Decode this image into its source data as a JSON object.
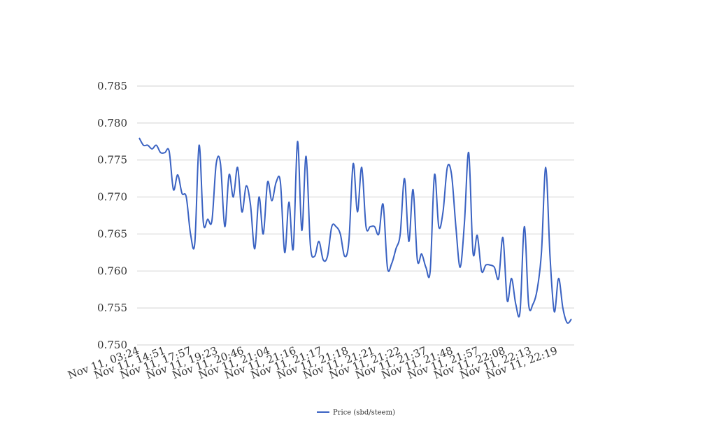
{
  "chart_data": {
    "type": "line",
    "title": "",
    "xlabel": "",
    "ylabel": "",
    "ylim": [
      0.75,
      0.785
    ],
    "y_ticks": [
      0.75,
      0.755,
      0.76,
      0.765,
      0.77,
      0.775,
      0.78,
      0.785
    ],
    "y_tick_labels": [
      "0.750",
      "0.755",
      "0.760",
      "0.765",
      "0.770",
      "0.775",
      "0.780",
      "0.785"
    ],
    "grid": true,
    "legend_position": "bottom-center",
    "x_tick_labels": [
      "Nov 11, 03:24",
      "Nov 11, 14:51",
      "Nov 11, 17:57",
      "Nov 11, 19:23",
      "Nov 11, 20:46",
      "Nov 11, 21:04",
      "Nov 11, 21:16",
      "Nov 11, 21:17",
      "Nov 11, 21:18",
      "Nov 11, 21:21",
      "Nov 11, 21:22",
      "Nov 11, 21:37",
      "Nov 11, 21:48",
      "Nov 11, 21:57",
      "Nov 11, 22:08",
      "Nov 11, 22:13",
      "Nov 11, 22:19"
    ],
    "series": [
      {
        "name": "Price (sbd/steem)",
        "color": "#3a62c2",
        "values": [
          0.778,
          0.777,
          0.777,
          0.7765,
          0.777,
          0.776,
          0.776,
          0.7762,
          0.771,
          0.773,
          0.7705,
          0.77,
          0.765,
          0.7638,
          0.777,
          0.7665,
          0.767,
          0.7668,
          0.7745,
          0.7745,
          0.766,
          0.773,
          0.77,
          0.774,
          0.768,
          0.7715,
          0.769,
          0.763,
          0.77,
          0.765,
          0.772,
          0.7695,
          0.772,
          0.772,
          0.7625,
          0.7693,
          0.763,
          0.7775,
          0.7655,
          0.7755,
          0.7635,
          0.762,
          0.764,
          0.7615,
          0.762,
          0.766,
          0.766,
          0.765,
          0.762,
          0.764,
          0.7745,
          0.768,
          0.774,
          0.766,
          0.766,
          0.766,
          0.765,
          0.769,
          0.7605,
          0.761,
          0.763,
          0.765,
          0.7725,
          0.764,
          0.771,
          0.7615,
          0.7623,
          0.7605,
          0.76,
          0.773,
          0.766,
          0.768,
          0.774,
          0.773,
          0.766,
          0.7605,
          0.7665,
          0.776,
          0.7625,
          0.7648,
          0.76,
          0.7608,
          0.7608,
          0.7605,
          0.759,
          0.7645,
          0.756,
          0.759,
          0.7555,
          0.7545,
          0.766,
          0.7555,
          0.7555,
          0.7575,
          0.7625,
          0.774,
          0.762,
          0.7545,
          0.759,
          0.755,
          0.753,
          0.7535
        ]
      }
    ]
  }
}
